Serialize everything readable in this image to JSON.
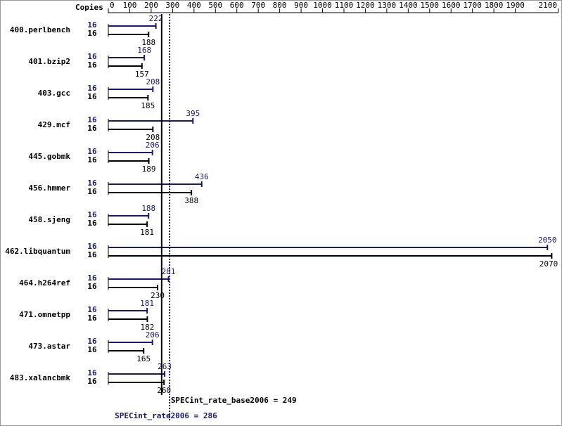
{
  "chart_data": {
    "type": "hbar",
    "copies_label": "Copies",
    "categories": [
      "400.perlbench",
      "401.bzip2",
      "403.gcc",
      "429.mcf",
      "445.gobmk",
      "456.hmmer",
      "458.sjeng",
      "462.libquantum",
      "464.h264ref",
      "471.omnetpp",
      "473.astar",
      "483.xalancbmk"
    ],
    "series": [
      {
        "color": "#191970",
        "copies": [
          16,
          16,
          16,
          16,
          16,
          16,
          16,
          16,
          16,
          16,
          16,
          16
        ],
        "values": [
          222,
          168,
          208,
          395,
          206,
          436,
          188,
          2050,
          281,
          181,
          206,
          263
        ]
      },
      {
        "color": "#000000",
        "copies": [
          16,
          16,
          16,
          16,
          16,
          16,
          16,
          16,
          16,
          16,
          16,
          16
        ],
        "values": [
          188,
          157,
          185,
          208,
          189,
          388,
          181,
          2070,
          230,
          182,
          165,
          260
        ]
      }
    ],
    "xlim": [
      0,
      2100
    ],
    "xticks": [
      0,
      100,
      200,
      300,
      400,
      500,
      600,
      700,
      800,
      900,
      1000,
      1100,
      1200,
      1300,
      1400,
      1500,
      1600,
      1700,
      1800,
      1900,
      2100
    ],
    "reference_lines": [
      {
        "label": "SPECint_rate_base2006 = 249",
        "value": 249,
        "color": "#000000",
        "style": "solid"
      },
      {
        "label": "SPECint_rate2006 = 286",
        "value": 286,
        "color": "#191970",
        "style": "dotted"
      }
    ]
  }
}
